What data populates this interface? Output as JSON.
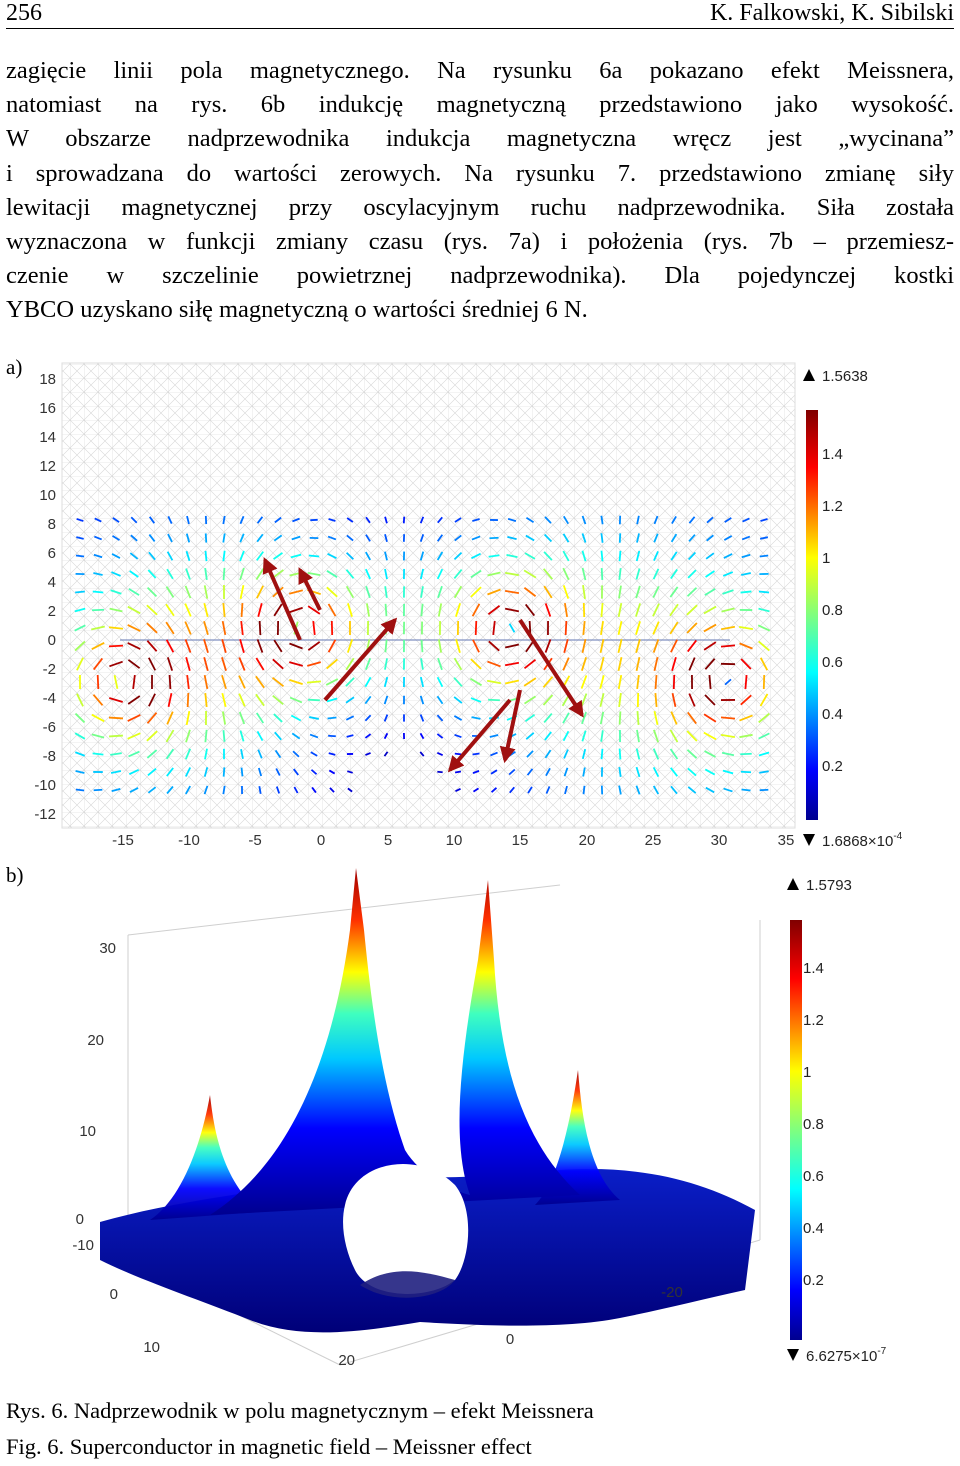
{
  "header": {
    "page_number": "256",
    "authors": "K. Falkowski, K. Sibilski"
  },
  "paragraph": [
    "zagięcie linii pola magnetycznego. Na rysunku 6a pokazano efekt Meissnera,",
    "natomiast na rys. 6b indukcję magnetyczną przedstawiono jako wysokość.",
    "W obszarze nadprzewodnika indukcja magnetyczna wręcz jest „wycinana”",
    "i sprowadzana do wartości zerowych. Na rysunku 7. przedstawiono zmianę siły",
    "lewitacji magnetycznej przy oscylacyjnym ruchu nadprzewodnika. Siła została",
    "wyznaczona w funkcji zmiany czasu (rys. 7a) i położenia (rys. 7b – przemiesz-",
    "czenie w szczelinie powietrznej nadprzewodnika). Dla pojedynczej kostki",
    "YBCO uzyskano siłę magnetyczną o wartości średniej 6 N."
  ],
  "figure_a": {
    "label": "a)",
    "y_ticks": [
      "18",
      "16",
      "14",
      "12",
      "10",
      "8",
      "6",
      "4",
      "2",
      "0",
      "-2",
      "-4",
      "-6",
      "-8",
      "-10",
      "-12"
    ],
    "x_ticks": [
      "-15",
      "-10",
      "-5",
      "0",
      "5",
      "10",
      "15",
      "20",
      "25",
      "30",
      "35"
    ],
    "colorbar_max": "1.5638",
    "colorbar_ticks": [
      "1.4",
      "1.2",
      "1",
      "0.8",
      "0.6",
      "0.4",
      "0.2"
    ],
    "colorbar_min": "1.6868×10",
    "colorbar_min_exp": "-4"
  },
  "figure_b": {
    "label": "b)",
    "z_ticks": [
      "30",
      "20",
      "10",
      "0"
    ],
    "y_ticks": [
      "-10",
      "0",
      "10",
      "20"
    ],
    "x_ticks": [
      "0",
      "-20"
    ],
    "colorbar_max": "1.5793",
    "colorbar_ticks": [
      "1.4",
      "1.2",
      "1",
      "0.8",
      "0.6",
      "0.4",
      "0.2"
    ],
    "colorbar_min": "6.6275×10",
    "colorbar_min_exp": "-7"
  },
  "caption": {
    "pl": "Rys. 6. Nadprzewodnik w polu magnetycznym – efekt Meissnera",
    "en": "Fig. 6. Superconductor in magnetic field – Meissner effect"
  },
  "colors": {
    "jet_low": "#00008f",
    "jet_high": "#800000",
    "mesh": "#c8c8c8"
  }
}
